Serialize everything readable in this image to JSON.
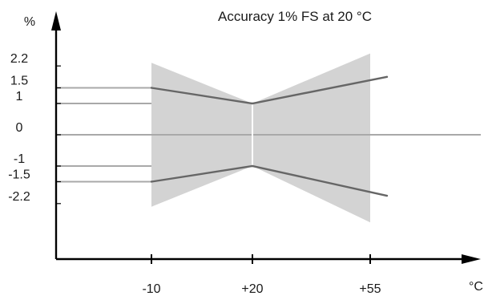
{
  "chart_data": {
    "type": "line",
    "title": "Accuracy 1% FS at 20 °C",
    "ylabel": "%",
    "xlabel": "°C",
    "grid": false,
    "legend": "none",
    "y_ticks": [
      {
        "value": 2.2,
        "label": "2.2"
      },
      {
        "value": 1.5,
        "label": "1.5"
      },
      {
        "value": 1.0,
        "label": "1"
      },
      {
        "value": 0.0,
        "label": "0"
      },
      {
        "value": -1.0,
        "label": "-1"
      },
      {
        "value": -1.5,
        "label": "-1.5"
      },
      {
        "value": -2.2,
        "label": "-2.2"
      }
    ],
    "x_ticks": [
      {
        "value": -10,
        "label": "-10"
      },
      {
        "value": 20,
        "label": "+20"
      },
      {
        "value": 55,
        "label": "+55"
      }
    ],
    "xlim": [
      -38,
      75
    ],
    "ylim": [
      -5.6,
      5.1
    ],
    "series": [
      {
        "values": [
          {
            "x": -10,
            "y": 1.5
          },
          {
            "x": 20,
            "y": 1.0
          },
          {
            "x": 60,
            "y": 1.85
          }
        ]
      },
      {
        "values": [
          {
            "x": -10,
            "y": -1.5
          },
          {
            "x": 20,
            "y": -1.0
          },
          {
            "x": 60,
            "y": -1.95
          }
        ]
      }
    ],
    "envelope": {
      "upper": [
        {
          "x": -10,
          "y": 2.3
        },
        {
          "x": 20,
          "y": 1.0
        },
        {
          "x": 55,
          "y": 2.6
        }
      ],
      "lower": [
        {
          "x": -10,
          "y": -2.3
        },
        {
          "x": 20,
          "y": -1.0
        },
        {
          "x": 55,
          "y": -2.8
        }
      ]
    },
    "colors": {
      "envelope": "#d3d3d3",
      "line": "#666666",
      "reference_line": "#a9a9a9",
      "axis": "#000000",
      "divider": "#ffffff"
    }
  }
}
